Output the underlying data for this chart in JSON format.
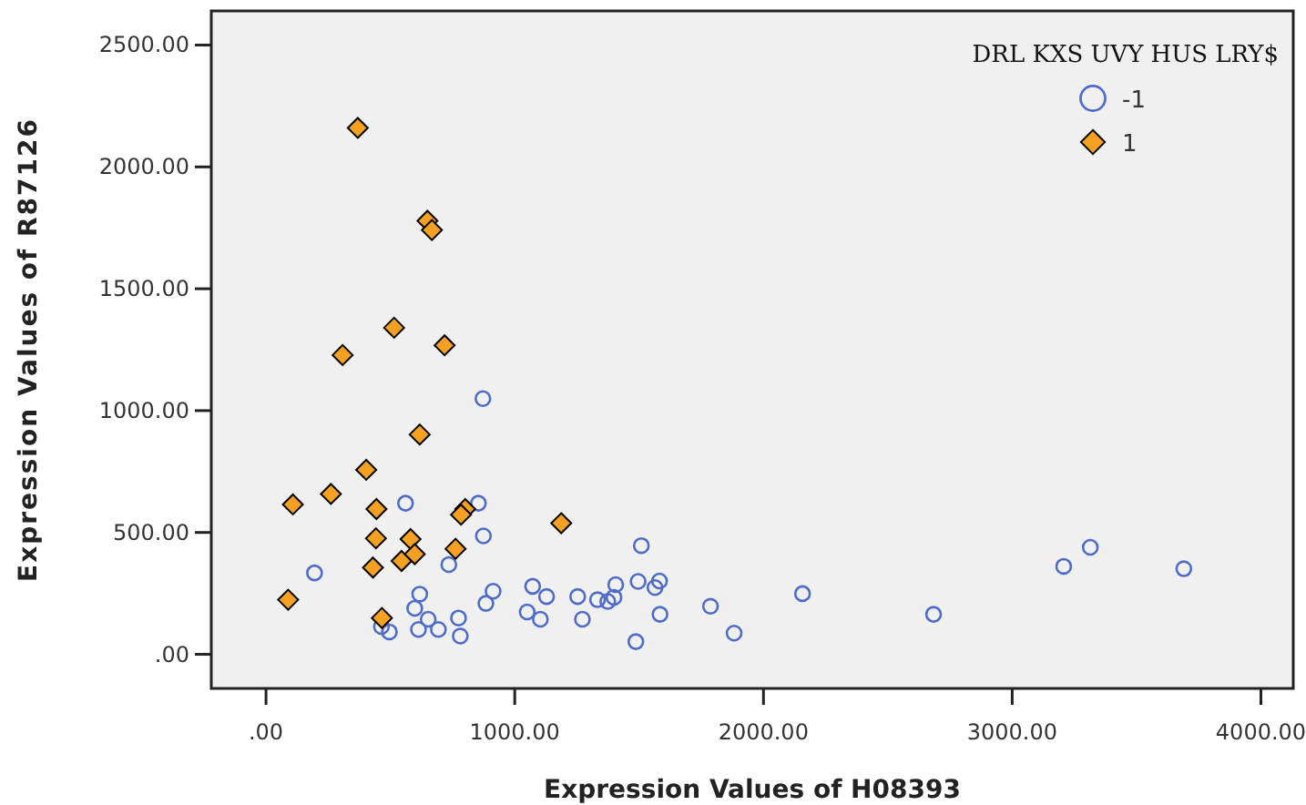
{
  "chart_data": {
    "type": "scatter",
    "xlabel": "Expression Values of H08393",
    "ylabel": "Expression Values of R87126",
    "legend_title": "DRL KXS UVY HUS LRY$",
    "xlim": [
      -220,
      4130
    ],
    "ylim": [
      -140,
      2640
    ],
    "xticks": [
      {
        "value": 0,
        "label": ".00"
      },
      {
        "value": 1000,
        "label": "1000.00"
      },
      {
        "value": 2000,
        "label": "2000.00"
      },
      {
        "value": 3000,
        "label": "3000.00"
      },
      {
        "value": 4000,
        "label": "4000.00"
      }
    ],
    "yticks": [
      {
        "value": 0,
        "label": ".00"
      },
      {
        "value": 500,
        "label": "500.00"
      },
      {
        "value": 1000,
        "label": "1000.00"
      },
      {
        "value": 1500,
        "label": "1500.00"
      },
      {
        "value": 2000,
        "label": "2000.00"
      },
      {
        "value": 2500,
        "label": "2500.00"
      }
    ],
    "grid": false,
    "legend": "top right",
    "series": [
      {
        "name": "-1",
        "color": "#4f6cc8",
        "marker": "circle",
        "x": [
          872,
          561,
          854,
          874,
          735,
          195,
          618,
          913,
          884,
          598,
          652,
          464,
          496,
          613,
          693,
          774,
          781,
          1072,
          1128,
          1050,
          1103,
          1253,
          1272,
          1333,
          1374,
          1406,
          1509,
          1399,
          1496,
          1582,
          1564,
          1584,
          1487,
          1787,
          1882,
          2157,
          2684,
          3207,
          3314,
          3690
        ],
        "values": [
          1049,
          620,
          620,
          486,
          368,
          334,
          247,
          259,
          209,
          189,
          144,
          114,
          92,
          102,
          102,
          149,
          75,
          279,
          237,
          174,
          144,
          237,
          144,
          224,
          217,
          286,
          446,
          234,
          299,
          301,
          274,
          164,
          52,
          197,
          87,
          249,
          164,
          361,
          439,
          351
        ]
      },
      {
        "name": "1",
        "color": "#f5a020",
        "marker": "diamond",
        "x": [
          369,
          649,
          667,
          515,
          308,
          718,
          618,
          403,
          108,
          261,
          444,
          801,
          784,
          442,
          581,
          545,
          598,
          762,
          430,
          89,
          466,
          1187
        ],
        "values": [
          2160,
          1779,
          1741,
          1340,
          1228,
          1268,
          902,
          757,
          615,
          658,
          596,
          596,
          573,
          476,
          473,
          383,
          411,
          433,
          356,
          224,
          149,
          538
        ]
      }
    ]
  }
}
